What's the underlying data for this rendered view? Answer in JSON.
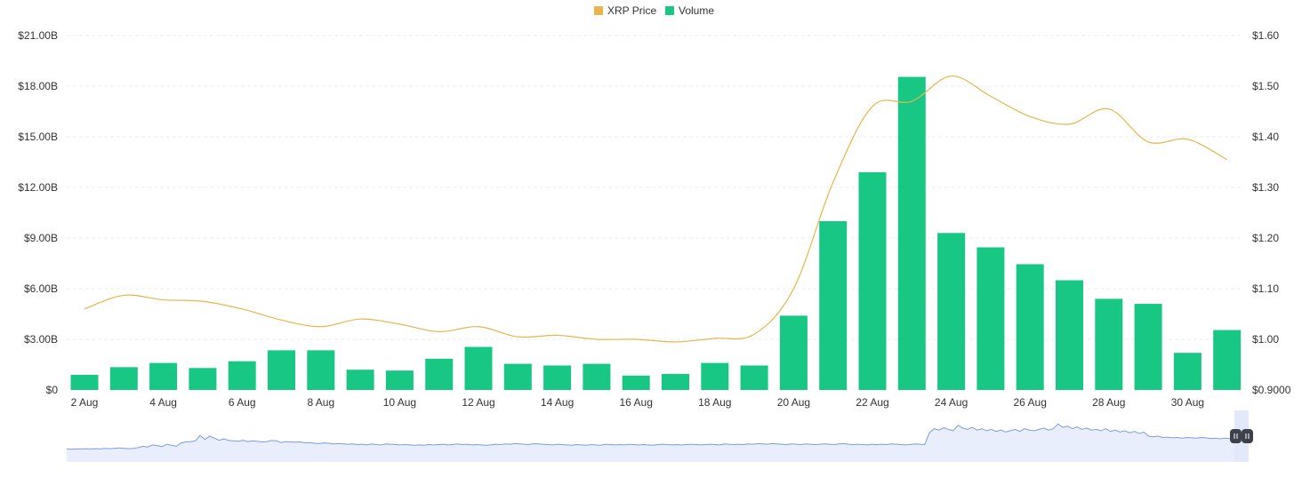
{
  "chart_data": {
    "type": "bar",
    "legend": {
      "placement": "top-center",
      "items": [
        {
          "label": "XRP Price",
          "color": "#e8b54d"
        },
        {
          "label": "Volume",
          "color": "#18c784"
        }
      ]
    },
    "x_ticks": [
      "2 Aug",
      "4 Aug",
      "6 Aug",
      "8 Aug",
      "10 Aug",
      "12 Aug",
      "14 Aug",
      "16 Aug",
      "18 Aug",
      "20 Aug",
      "22 Aug",
      "24 Aug",
      "26 Aug",
      "28 Aug",
      "30 Aug"
    ],
    "left_axis": {
      "ticks": [
        "$0",
        "$3.00B",
        "$6.00B",
        "$9.00B",
        "$12.00B",
        "$15.00B",
        "$18.00B",
        "$21.00B"
      ],
      "range": [
        0,
        21
      ]
    },
    "right_axis": {
      "ticks": [
        "$0.9000",
        "$1.00",
        "$1.10",
        "$1.20",
        "$1.30",
        "$1.40",
        "$1.50",
        "$1.60"
      ],
      "range": [
        0.9,
        1.6
      ]
    },
    "grid": true,
    "series": [
      {
        "name": "Volume",
        "type": "bar",
        "color": "#18c784",
        "unit": "billion USD",
        "values": [
          0.9,
          1.35,
          1.6,
          1.3,
          1.7,
          2.35,
          2.35,
          1.2,
          1.15,
          1.85,
          2.55,
          1.55,
          1.45,
          1.55,
          0.85,
          0.95,
          1.6,
          1.45,
          4.4,
          10.0,
          12.9,
          18.55,
          9.3,
          8.45,
          7.45,
          6.5,
          5.4,
          5.1,
          2.2,
          3.55
        ]
      },
      {
        "name": "XRP Price",
        "type": "line",
        "color": "#e8b54d",
        "unit": "USD",
        "values": [
          1.06,
          1.087,
          1.078,
          1.075,
          1.06,
          1.038,
          1.025,
          1.04,
          1.03,
          1.015,
          1.025,
          1.005,
          1.008,
          1.0,
          1.0,
          0.995,
          1.002,
          1.01,
          1.1,
          1.31,
          1.46,
          1.47,
          1.52,
          1.48,
          1.44,
          1.425,
          1.455,
          1.39,
          1.395,
          1.355
        ]
      }
    ],
    "navigator": {
      "color": "#7b9ee0",
      "fill": "#e8eefb",
      "profile": [
        0.12,
        0.11,
        0.12,
        0.12,
        0.13,
        0.12,
        0.13,
        0.12,
        0.14,
        0.13,
        0.14,
        0.15,
        0.14,
        0.13,
        0.14,
        0.16,
        0.2,
        0.18,
        0.24,
        0.22,
        0.19,
        0.26,
        0.23,
        0.2,
        0.3,
        0.33,
        0.34,
        0.36,
        0.52,
        0.4,
        0.5,
        0.44,
        0.38,
        0.42,
        0.37,
        0.36,
        0.35,
        0.38,
        0.34,
        0.36,
        0.35,
        0.33,
        0.34,
        0.37,
        0.36,
        0.31,
        0.34,
        0.33,
        0.32,
        0.33,
        0.3,
        0.31,
        0.29,
        0.28,
        0.3,
        0.29,
        0.27,
        0.28,
        0.27,
        0.26,
        0.27,
        0.25,
        0.26,
        0.24,
        0.27,
        0.25,
        0.24,
        0.27,
        0.26,
        0.25,
        0.24,
        0.25,
        0.24,
        0.23,
        0.24,
        0.23,
        0.25,
        0.24,
        0.25,
        0.26,
        0.24,
        0.25,
        0.27,
        0.25,
        0.26,
        0.24,
        0.25,
        0.24,
        0.23,
        0.24,
        0.26,
        0.25,
        0.27,
        0.26,
        0.28,
        0.27,
        0.26,
        0.25,
        0.28,
        0.27,
        0.26,
        0.25,
        0.24,
        0.26,
        0.25,
        0.24,
        0.23,
        0.25,
        0.24,
        0.23,
        0.25,
        0.24,
        0.23,
        0.26,
        0.25,
        0.24,
        0.25,
        0.24,
        0.26,
        0.25,
        0.24,
        0.25,
        0.24,
        0.23,
        0.25,
        0.26,
        0.25,
        0.24,
        0.25,
        0.24,
        0.25,
        0.26,
        0.25,
        0.24,
        0.25,
        0.26,
        0.25,
        0.24,
        0.27,
        0.26,
        0.25,
        0.26,
        0.25,
        0.27,
        0.26,
        0.28,
        0.27,
        0.26,
        0.28,
        0.27,
        0.26,
        0.25,
        0.27,
        0.26,
        0.25,
        0.27,
        0.26,
        0.25,
        0.26,
        0.27,
        0.26,
        0.25,
        0.27,
        0.28,
        0.26,
        0.25,
        0.26,
        0.25,
        0.24,
        0.26,
        0.25,
        0.26,
        0.25,
        0.27,
        0.26,
        0.25,
        0.24,
        0.25,
        0.27,
        0.26,
        0.25,
        0.6,
        0.72,
        0.68,
        0.75,
        0.7,
        0.66,
        0.82,
        0.74,
        0.7,
        0.76,
        0.68,
        0.72,
        0.66,
        0.7,
        0.64,
        0.68,
        0.62,
        0.66,
        0.7,
        0.64,
        0.72,
        0.68,
        0.66,
        0.7,
        0.74,
        0.68,
        0.72,
        0.86,
        0.76,
        0.8,
        0.72,
        0.78,
        0.7,
        0.74,
        0.68,
        0.7,
        0.66,
        0.72,
        0.64,
        0.68,
        0.62,
        0.66,
        0.6,
        0.64,
        0.58,
        0.62,
        0.5,
        0.48,
        0.5,
        0.46,
        0.47,
        0.45,
        0.46,
        0.44,
        0.46,
        0.45,
        0.44,
        0.46,
        0.45,
        0.43,
        0.44,
        0.42,
        0.44,
        0.43,
        0.42
      ]
    }
  }
}
